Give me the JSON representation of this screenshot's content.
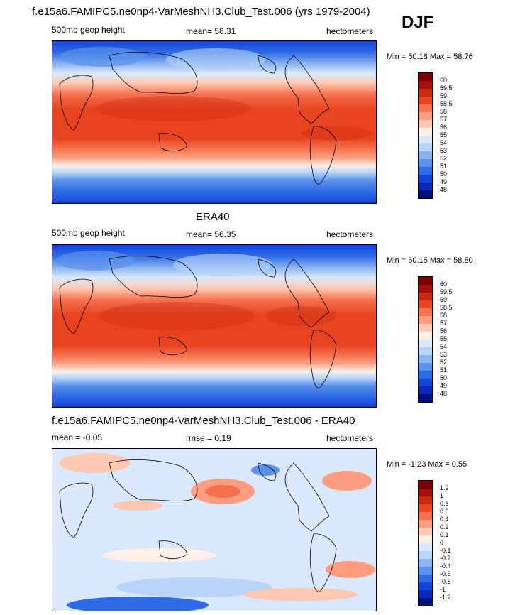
{
  "season": "DJF",
  "panels": [
    {
      "id": "model",
      "title": "f.e15a6.FAMIPC5.ne0np4-VarMeshNH3.Club_Test.006 (yrs 1979-2004)",
      "left_label": "500mb geop height",
      "center_label": "mean=  56.31",
      "right_label": "hectometers",
      "min_max": "Min =  50.18 Max =  58.76",
      "colorbar": {
        "colors": [
          "#7f0000",
          "#a50f0f",
          "#cc2a10",
          "#e8441f",
          "#f5704d",
          "#fb9d7f",
          "#fdc7b0",
          "#fff0e6",
          "#dae8fb",
          "#b8d4f8",
          "#8ab4f1",
          "#5a91eb",
          "#2f6be6",
          "#1546dc",
          "#0a28b8",
          "#00107c"
        ],
        "tick_labels": [
          "60",
          "59.5",
          "59",
          "58.5",
          "58",
          "57",
          "56",
          "55",
          "54",
          "53",
          "52",
          "51",
          "50",
          "49",
          "48"
        ]
      }
    },
    {
      "id": "obs",
      "title": "ERA40",
      "left_label": "500mb geop height",
      "center_label": "mean=  56.35",
      "right_label": "hectometers",
      "min_max": "Min =  50.15 Max =  58.80",
      "colorbar": {
        "colors": [
          "#7f0000",
          "#a50f0f",
          "#cc2a10",
          "#e8441f",
          "#f5704d",
          "#fb9d7f",
          "#fdc7b0",
          "#fff0e6",
          "#dae8fb",
          "#b8d4f8",
          "#8ab4f1",
          "#5a91eb",
          "#2f6be6",
          "#1546dc",
          "#0a28b8",
          "#00107c"
        ],
        "tick_labels": [
          "60",
          "59.5",
          "59",
          "58.5",
          "58",
          "57",
          "56",
          "55",
          "54",
          "53",
          "52",
          "51",
          "50",
          "49",
          "48"
        ]
      }
    },
    {
      "id": "diff",
      "title": "f.e15a6.FAMIPC5.ne0np4-VarMeshNH3.Club_Test.006 - ERA40",
      "left_label": "mean =  -0.05",
      "center_label": "rmse =   0.19",
      "right_label": "hectometers",
      "min_max": "Min =  -1.23 Max =   0.55",
      "colorbar": {
        "colors": [
          "#7f0000",
          "#a50f0f",
          "#cc2a10",
          "#e8441f",
          "#f5704d",
          "#fb9d7f",
          "#fdc7b0",
          "#fff0e6",
          "#dae8fb",
          "#b8d4f8",
          "#8ab4f1",
          "#5a91eb",
          "#2f6be6",
          "#1546dc",
          "#0a28b8",
          "#00107c"
        ],
        "tick_labels": [
          "1.2",
          "1",
          "0.8",
          "0.6",
          "0.4",
          "0.2",
          "0.1",
          "0",
          "-0.1",
          "-0.2",
          "-0.4",
          "-0.6",
          "-0.8",
          "-1",
          "-1.2"
        ]
      }
    }
  ]
}
